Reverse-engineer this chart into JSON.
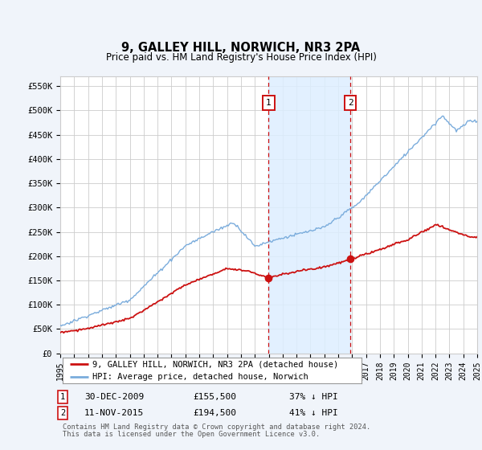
{
  "title": "9, GALLEY HILL, NORWICH, NR3 2PA",
  "subtitle": "Price paid vs. HM Land Registry's House Price Index (HPI)",
  "ylabel_ticks": [
    "£0",
    "£50K",
    "£100K",
    "£150K",
    "£200K",
    "£250K",
    "£300K",
    "£350K",
    "£400K",
    "£450K",
    "£500K",
    "£550K"
  ],
  "ytick_values": [
    0,
    50000,
    100000,
    150000,
    200000,
    250000,
    300000,
    350000,
    400000,
    450000,
    500000,
    550000
  ],
  "ylim": [
    0,
    570000
  ],
  "xlim_years": [
    1995,
    2025
  ],
  "hpi_color": "#7aacdc",
  "price_color": "#cc1111",
  "background_color": "#f0f4fa",
  "plot_bg": "#ffffff",
  "grid_color": "#cccccc",
  "shade_color": "#ddeeff",
  "transaction1": {
    "date": "30-DEC-2009",
    "price": 155500,
    "label": "37% ↓ HPI",
    "num": "1",
    "year": 2009.99
  },
  "transaction2": {
    "date": "11-NOV-2015",
    "price": 194500,
    "label": "41% ↓ HPI",
    "num": "2",
    "year": 2015.87
  },
  "legend_line1": "9, GALLEY HILL, NORWICH, NR3 2PA (detached house)",
  "legend_line2": "HPI: Average price, detached house, Norwich",
  "footer1": "Contains HM Land Registry data © Crown copyright and database right 2024.",
  "footer2": "This data is licensed under the Open Government Licence v3.0."
}
